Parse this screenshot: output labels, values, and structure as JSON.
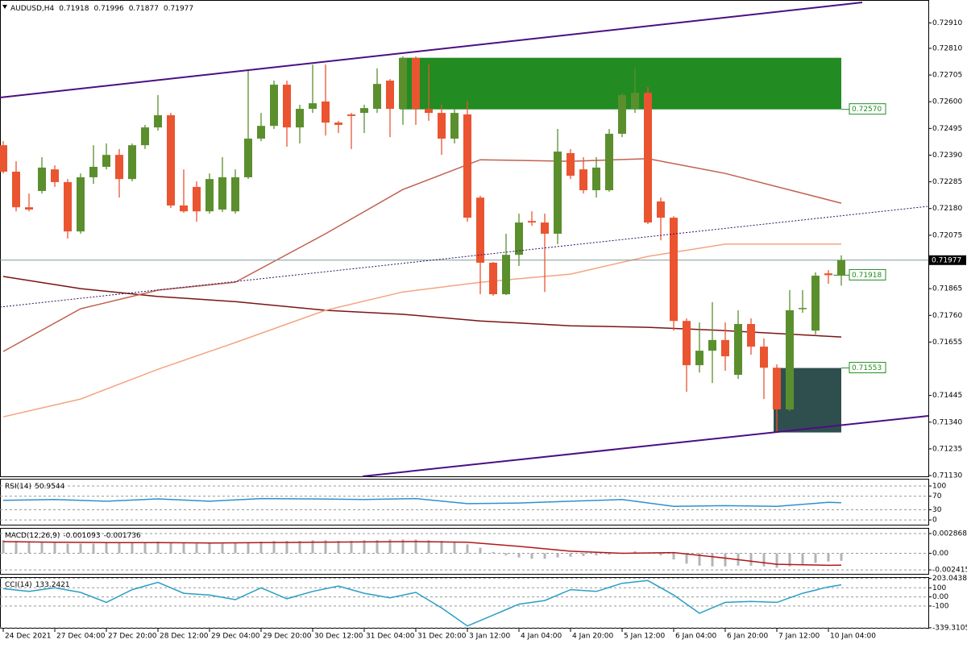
{
  "chart_data": [
    {
      "type": "candlestick",
      "symbol": "AUDUSD,H4",
      "header_values": [
        0.71918,
        0.71996,
        0.71877,
        0.71977
      ],
      "up_color": "#5b8f2e",
      "down_color": "#ea5430",
      "xlim": [
        -0.25,
        71.75
      ],
      "ylim": [
        0.71127,
        0.73
      ],
      "grid": false,
      "yticks": [
        {
          "value": 0.7291,
          "label": "0.72910"
        },
        {
          "value": 0.7281,
          "label": "0.72810"
        },
        0.72705,
        {
          "value": 0.726,
          "label": "0.72600"
        },
        0.72495,
        {
          "value": 0.7239,
          "label": "0.72390"
        },
        0.72285,
        {
          "value": 0.7218,
          "label": "0.72180"
        },
        0.72075,
        0.71865,
        {
          "value": 0.7176,
          "label": "0.71760"
        },
        0.71655,
        0.71445,
        {
          "value": 0.7134,
          "label": "0.71340"
        },
        0.71235,
        {
          "value": 0.7113,
          "label": "0.71130"
        }
      ],
      "xticks": [
        {
          "value": 0,
          "label": "24 Dec 2021"
        },
        {
          "value": 4,
          "label": "27 Dec 04:00"
        },
        {
          "value": 8,
          "label": "27 Dec 20:00"
        },
        {
          "value": 12,
          "label": "28 Dec 12:00"
        },
        {
          "value": 16,
          "label": "29 Dec 04:00"
        },
        {
          "value": 20,
          "label": "29 Dec 20:00"
        },
        {
          "value": 24,
          "label": "30 Dec 12:00"
        },
        {
          "value": 28,
          "label": "31 Dec 04:00"
        },
        {
          "value": 32,
          "label": "31 Dec 20:00"
        },
        {
          "value": 36,
          "label": "3 Jan 12:00"
        },
        {
          "value": 40,
          "label": "4 Jan 04:00"
        },
        {
          "value": 44,
          "label": "4 Jan 20:00"
        },
        {
          "value": 48,
          "label": "5 Jan 12:00"
        },
        {
          "value": 52,
          "label": "6 Jan 04:00"
        },
        {
          "value": 56,
          "label": "6 Jan 20:00"
        },
        {
          "value": 60,
          "label": "7 Jan 12:00"
        },
        {
          "value": 64,
          "label": "10 Jan 04:00"
        }
      ],
      "open": [
        0.72429,
        0.72325,
        0.72185,
        0.72249,
        0.72334,
        0.72284,
        0.7209,
        0.72303,
        0.72344,
        0.72391,
        0.72296,
        0.72429,
        0.72499,
        0.72547,
        0.72192,
        0.72265,
        0.72169,
        0.72176,
        0.72169,
        0.72303,
        0.72455,
        0.72505,
        0.72667,
        0.72499,
        0.72572,
        0.72601,
        0.72518,
        0.7255,
        0.72556,
        0.72572,
        0.72683,
        0.72572,
        0.72772,
        0.72572,
        0.72556,
        0.72455,
        0.7255,
        0.72223,
        0.71967,
        0.71843,
        0.71998,
        0.72131,
        0.72125,
        0.72081,
        0.72398,
        0.72334,
        0.72252,
        0.72252,
        0.72474,
        0.72572,
        0.72635,
        0.72208,
        0.72144,
        0.71738,
        0.71564,
        0.71621,
        0.71663,
        0.71526,
        0.71726,
        0.71637,
        0.71554,
        0.7139,
        0.71786,
        0.717,
        0.71925,
        0.71918
      ],
      "high": [
        0.72445,
        0.72366,
        0.72239,
        0.72382,
        0.7235,
        0.72296,
        0.72318,
        0.72429,
        0.72436,
        0.72414,
        0.72436,
        0.72509,
        0.72626,
        0.72556,
        0.72334,
        0.72287,
        0.72318,
        0.72382,
        0.72334,
        0.72721,
        0.72556,
        0.72683,
        0.72683,
        0.72588,
        0.72746,
        0.72746,
        0.72525,
        0.72556,
        0.72588,
        0.72731,
        0.72689,
        0.72778,
        0.72778,
        0.72746,
        0.72588,
        0.72572,
        0.72604,
        0.7223,
        0.7197,
        0.72081,
        0.7216,
        0.72169,
        0.7216,
        0.72493,
        0.72414,
        0.72382,
        0.72382,
        0.72493,
        0.72635,
        0.72731,
        0.72658,
        0.72223,
        0.7215,
        0.71748,
        0.71732,
        0.71812,
        0.71732,
        0.7178,
        0.71748,
        0.71669,
        0.71567,
        0.71859,
        0.71859,
        0.71929,
        0.71938,
        0.71996
      ],
      "low": [
        0.72318,
        0.72169,
        0.72169,
        0.72239,
        0.72265,
        0.72062,
        0.72081,
        0.72277,
        0.72334,
        0.72223,
        0.72287,
        0.72414,
        0.72486,
        0.72182,
        0.72163,
        0.72128,
        0.7216,
        0.72166,
        0.7216,
        0.72296,
        0.72445,
        0.72493,
        0.72423,
        0.72436,
        0.72556,
        0.72467,
        0.72477,
        0.72414,
        0.72477,
        0.72556,
        0.72461,
        0.72509,
        0.72509,
        0.72525,
        0.72391,
        0.72436,
        0.72128,
        0.71843,
        0.71837,
        0.7184,
        0.71954,
        0.72112,
        0.71852,
        0.7204,
        0.72296,
        0.72239,
        0.72223,
        0.72246,
        0.72461,
        0.72556,
        0.72119,
        0.72055,
        0.717,
        0.71459,
        0.71535,
        0.71494,
        0.71542,
        0.7151,
        0.71605,
        0.71431,
        0.71304,
        0.71383,
        0.7177,
        0.71685,
        0.71884,
        0.71877
      ],
      "close": [
        0.72325,
        0.72185,
        0.72176,
        0.72341,
        0.72284,
        0.7209,
        0.72303,
        0.72344,
        0.72391,
        0.72296,
        0.72429,
        0.72499,
        0.72547,
        0.72192,
        0.72169,
        0.72169,
        0.72296,
        0.72303,
        0.72303,
        0.72455,
        0.72505,
        0.72667,
        0.72499,
        0.72572,
        0.72594,
        0.72518,
        0.72509,
        0.72544,
        0.72575,
        0.7267,
        0.72572,
        0.72772,
        0.72572,
        0.72556,
        0.72455,
        0.72556,
        0.72144,
        0.71967,
        0.71843,
        0.71998,
        0.72125,
        0.72125,
        0.72081,
        0.72404,
        0.72309,
        0.72252,
        0.72341,
        0.72474,
        0.72626,
        0.72635,
        0.72125,
        0.72144,
        0.71738,
        0.71564,
        0.71621,
        0.71663,
        0.71599,
        0.71726,
        0.71637,
        0.71554,
        0.7139,
        0.7178,
        0.71789,
        0.71916,
        0.71918,
        0.71977
      ],
      "lines": [
        {
          "color": "#7a1414",
          "x": [
            0,
            6,
            12,
            18,
            25,
            31,
            37,
            44,
            50,
            56,
            65
          ],
          "values": [
            0.71913,
            0.71865,
            0.71834,
            0.71814,
            0.7178,
            0.71764,
            0.71738,
            0.71719,
            0.71713,
            0.717,
            0.71675
          ]
        },
        {
          "color": "#f4a481",
          "x": [
            0,
            6,
            12,
            18,
            25,
            31,
            37,
            44,
            50,
            56,
            65
          ],
          "values": [
            0.71361,
            0.71431,
            0.71548,
            0.71653,
            0.7178,
            0.71852,
            0.7189,
            0.71922,
            0.71992,
            0.7204,
            0.7204
          ]
        },
        {
          "color": "#c0614f",
          "x": [
            0,
            6,
            12,
            18,
            25,
            31,
            37,
            44,
            50,
            56,
            65
          ],
          "values": [
            0.71618,
            0.71786,
            0.71859,
            0.7189,
            0.72081,
            0.72255,
            0.72372,
            0.72366,
            0.72376,
            0.72318,
            0.72201
          ]
        }
      ],
      "levels": [
        {
          "value": 0.7257,
          "label": "0.72570"
        },
        0.71918,
        0.71553
      ],
      "current_price": 0.71977
    },
    {
      "type": "line",
      "name": "RSI(14)",
      "current": [
        50.9544
      ],
      "ylim": [
        -14,
        119
      ],
      "yticks": [
        100,
        70,
        30,
        0
      ],
      "grid": true,
      "series": [
        {
          "color": "#2f8fcf",
          "x": [
            0,
            4,
            8,
            12,
            16,
            20,
            24,
            28,
            32,
            36,
            40,
            44,
            48,
            52,
            56,
            60,
            64,
            65
          ],
          "values": [
            58,
            60,
            55,
            62,
            55,
            63,
            62,
            60,
            63,
            48,
            50,
            55,
            60,
            40,
            42,
            40,
            52,
            50.9544
          ]
        }
      ]
    },
    {
      "type": "bar-line",
      "name": "MACD(12,26,9)",
      "current": [
        -0.001093,
        -0.001736
      ],
      "ylim": [
        -0.00299,
        0.00357
      ],
      "yticks": [
        0.002868,
        {
          "value": 0,
          "label": "0.00"
        },
        -0.002415
      ],
      "grid": true,
      "bars": {
        "color": "#b4b4b4",
        "values": [
          0.0019,
          0.0018,
          0.0017,
          0.0016,
          0.0015,
          0.0014,
          0.0014,
          0.0014,
          0.0015,
          0.0015,
          0.0015,
          0.0016,
          0.0017,
          0.0016,
          0.0015,
          0.0014,
          0.0014,
          0.0014,
          0.0015,
          0.0016,
          0.0017,
          0.0018,
          0.0018,
          0.0018,
          0.0019,
          0.0019,
          0.0018,
          0.0018,
          0.0019,
          0.0019,
          0.002,
          0.002,
          0.002,
          0.0019,
          0.0018,
          0.0016,
          0.0013,
          0.0008,
          0.0002,
          -0.0003,
          -0.0006,
          -0.0008,
          -0.0008,
          -0.0006,
          -0.0005,
          -0.0004,
          -0.0003,
          -0.0002,
          0.0001,
          0.0003,
          0,
          -0.0003,
          -0.0009,
          -0.0015,
          -0.0018,
          -0.0019,
          -0.0019,
          -0.0018,
          -0.0018,
          -0.0019,
          -0.0021,
          -0.0019,
          -0.0017,
          -0.0014,
          -0.0012,
          -0.001093
        ]
      },
      "series": [
        {
          "color": "#b01818",
          "x": [
            0,
            4,
            8,
            12,
            16,
            20,
            24,
            28,
            32,
            36,
            40,
            44,
            48,
            52,
            56,
            60,
            64,
            65
          ],
          "values": [
            0.0017,
            0.0016,
            0.00155,
            0.00155,
            0.0015,
            0.00155,
            0.0016,
            0.00165,
            0.0017,
            0.0016,
            0.001,
            0.0003,
            0,
            0.0001,
            -0.0007,
            -0.0016,
            -0.00175,
            -0.001736
          ]
        }
      ]
    },
    {
      "type": "line",
      "name": "CCI(14)",
      "current": [
        133.2421
      ],
      "ylim": [
        -340,
        209
      ],
      "yticks": [
        203.0438,
        100,
        {
          "value": 0,
          "label": "0.00"
        },
        -100,
        -339.3105
      ],
      "grid": true,
      "series": [
        {
          "color": "#2a9ec4",
          "x": [
            0,
            2,
            4,
            6,
            8,
            10,
            12,
            14,
            16,
            18,
            20,
            22,
            24,
            26,
            28,
            30,
            32,
            34,
            36,
            38,
            40,
            42,
            44,
            46,
            48,
            50,
            52,
            54,
            56,
            58,
            60,
            62,
            64,
            65
          ],
          "values": [
            90,
            60,
            100,
            50,
            -60,
            80,
            160,
            40,
            20,
            -30,
            100,
            -20,
            60,
            120,
            40,
            -10,
            50,
            -120,
            -320,
            -200,
            -80,
            -40,
            80,
            60,
            150,
            180,
            20,
            -180,
            -60,
            -50,
            -60,
            40,
            110,
            133.2421
          ]
        }
      ]
    }
  ]
}
